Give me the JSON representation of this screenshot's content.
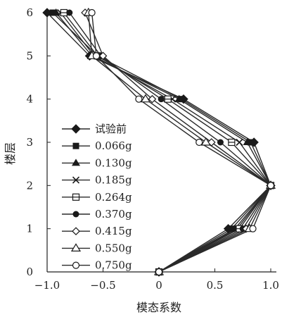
{
  "chart_data": {
    "type": "line",
    "xlabel": "模态系数",
    "ylabel": "楼层",
    "xlim": [
      -1.0,
      1.0
    ],
    "ylim": [
      0,
      6
    ],
    "x_ticks": [
      -1.0,
      -0.5,
      0,
      0.5,
      1.0
    ],
    "x_tick_labels": [
      "−1.0",
      "−0.5",
      "0",
      "0.5",
      "1.0"
    ],
    "y_ticks": [
      0,
      1,
      2,
      3,
      4,
      5,
      6
    ],
    "y_tick_labels": [
      "0",
      "1",
      "2",
      "3",
      "4",
      "5",
      "6"
    ],
    "grid": false,
    "legend_position": "left-center",
    "y": [
      0,
      1,
      2,
      3,
      4,
      5,
      6
    ],
    "series": [
      {
        "name": "试验前",
        "marker": "diamond-filled",
        "x": [
          0,
          0.62,
          1.0,
          0.85,
          0.22,
          -0.62,
          -1.0
        ]
      },
      {
        "name": "0.066g",
        "marker": "square-filled",
        "x": [
          0,
          0.65,
          1.0,
          0.82,
          0.2,
          -0.55,
          -0.95
        ]
      },
      {
        "name": "0.130g",
        "marker": "triangle-filled",
        "x": [
          0,
          0.68,
          1.0,
          0.79,
          0.18,
          -0.6,
          -0.92
        ]
      },
      {
        "name": "0.185g",
        "marker": "x-cross",
        "x": [
          0,
          0.7,
          1.0,
          0.72,
          0.12,
          -0.58,
          -0.88
        ]
      },
      {
        "name": "0.264g",
        "marker": "square-open-bar",
        "x": [
          0,
          0.72,
          1.0,
          0.65,
          0.08,
          -0.55,
          -0.85
        ]
      },
      {
        "name": "0.370g",
        "marker": "circle-filled",
        "x": [
          0,
          0.75,
          1.0,
          0.55,
          0.02,
          -0.52,
          -0.8
        ]
      },
      {
        "name": "0.415g",
        "marker": "diamond-open",
        "x": [
          0,
          0.78,
          1.0,
          0.47,
          -0.06,
          -0.5,
          -0.66
        ]
      },
      {
        "name": "0.550g",
        "marker": "triangle-open",
        "x": [
          0,
          0.81,
          1.0,
          0.42,
          -0.12,
          -0.6,
          -0.63
        ]
      },
      {
        "name": "0.750g",
        "marker": "circle-open",
        "x": [
          0,
          0.84,
          1.0,
          0.36,
          -0.18,
          -0.56,
          -0.6
        ]
      }
    ]
  }
}
